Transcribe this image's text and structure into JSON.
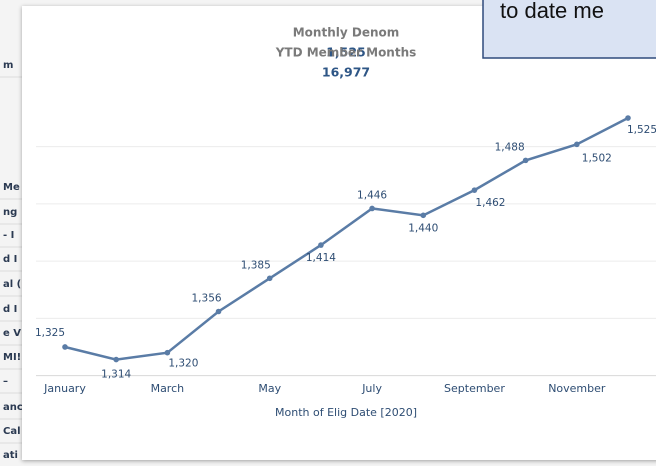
{
  "sidebar": [
    "m",
    "Me",
    "ng",
    "- I",
    "d I",
    "al (",
    "d I",
    "e V",
    "MI!",
    "–",
    "anc",
    "Cal",
    "ati"
  ],
  "callout": "to date me",
  "chart_data": {
    "type": "line",
    "header": [
      {
        "label": "Monthly Denom",
        "value": "1,525"
      },
      {
        "label": "YTD Member Months",
        "value": "16,977"
      }
    ],
    "categories": [
      "January",
      null,
      "March",
      null,
      "May",
      null,
      "July",
      null,
      "September",
      null,
      "November",
      null
    ],
    "series": [
      {
        "name": "Monthly Denom",
        "color": "#5a7ca6",
        "values": [
          1325,
          1314,
          1320,
          1356,
          1385,
          1414,
          1446,
          1440,
          1462,
          1488,
          1502,
          1525
        ],
        "value_labels": [
          "1,325",
          "1,314",
          "1,320",
          "1,356",
          "1,385",
          "1,414",
          "1,446",
          "1,440",
          "1,462",
          "1,488",
          "1,502",
          "1,525"
        ]
      }
    ],
    "ylim": [
      1300,
      1550
    ],
    "yticks": [
      1350,
      1400,
      1450,
      1500
    ],
    "grid": true,
    "xlabel": "Month of Elig Date [2020]"
  }
}
